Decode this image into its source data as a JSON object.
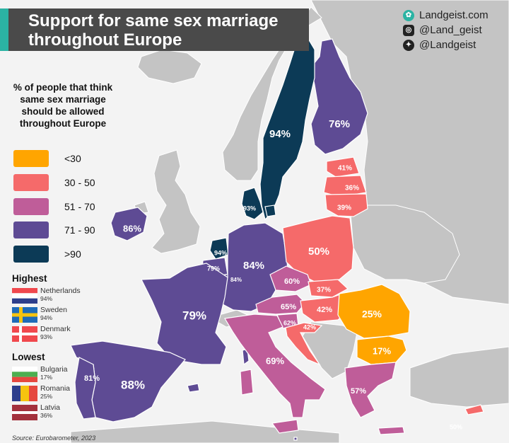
{
  "title": {
    "line1": "Support for same sex marriage",
    "line2": "throughout Europe"
  },
  "branding": [
    {
      "icon": "landgeist-logo-icon",
      "text": "Landgeist.com"
    },
    {
      "icon": "instagram-icon",
      "text": "@Land_geist"
    },
    {
      "icon": "twitter-icon",
      "text": "@Landgeist"
    }
  ],
  "legend": {
    "title": "% of people that think same sex marriage should be allowed throughout Europe",
    "items": [
      {
        "label": "<30",
        "color": "#ffa500"
      },
      {
        "label": "30 - 50",
        "color": "#f56a6a"
      },
      {
        "label": "51 - 70",
        "color": "#bf5d99"
      },
      {
        "label": "71 - 90",
        "color": "#5e4b94"
      },
      {
        "label": ">90",
        "color": "#0c3a56"
      }
    ]
  },
  "highest": {
    "title": "Highest",
    "items": [
      {
        "country": "Netherlands",
        "value": "94%",
        "flag": "netherlands-flag-icon"
      },
      {
        "country": "Sweden",
        "value": "94%",
        "flag": "sweden-flag-icon"
      },
      {
        "country": "Denmark",
        "value": "93%",
        "flag": "denmark-flag-icon"
      }
    ]
  },
  "lowest": {
    "title": "Lowest",
    "items": [
      {
        "country": "Bulgaria",
        "value": "17%",
        "flag": "bulgaria-flag-icon"
      },
      {
        "country": "Romania",
        "value": "25%",
        "flag": "romania-flag-icon"
      },
      {
        "country": "Latvia",
        "value": "36%",
        "flag": "latvia-flag-icon"
      }
    ]
  },
  "source": "Source: Eurobarometer, 2023",
  "colors": {
    "nonEU": "#c4c4c4",
    "sea": "#f3f3f3",
    "border": "#ffffff",
    "titleBg": "#4a4a4a",
    "accent": "#2bb3a3"
  },
  "countries": [
    {
      "id": "sweden",
      "value": "94%",
      "label": true
    },
    {
      "id": "finland",
      "value": "76%",
      "label": true
    },
    {
      "id": "estonia",
      "value": "41%",
      "label": true
    },
    {
      "id": "latvia",
      "value": "36%",
      "label": true
    },
    {
      "id": "lithuania",
      "value": "39%",
      "label": true
    },
    {
      "id": "denmark",
      "value": "93%",
      "label": true
    },
    {
      "id": "ireland",
      "value": "86%",
      "label": true
    },
    {
      "id": "netherlands",
      "value": "94%",
      "label": true
    },
    {
      "id": "belgium",
      "value": "79%",
      "label": true
    },
    {
      "id": "luxembourg",
      "value": "84%",
      "label": true
    },
    {
      "id": "germany",
      "value": "84%",
      "label": true
    },
    {
      "id": "poland",
      "value": "50%",
      "label": true
    },
    {
      "id": "czechia",
      "value": "60%",
      "label": true
    },
    {
      "id": "slovakia",
      "value": "37%",
      "label": true
    },
    {
      "id": "austria",
      "value": "65%",
      "label": true
    },
    {
      "id": "hungary",
      "value": "42%",
      "label": true
    },
    {
      "id": "slovenia",
      "value": "62%",
      "label": true
    },
    {
      "id": "croatia",
      "value": "42%",
      "label": true
    },
    {
      "id": "romania",
      "value": "25%",
      "label": true
    },
    {
      "id": "bulgaria",
      "value": "17%",
      "label": true
    },
    {
      "id": "france",
      "value": "79%",
      "label": true
    },
    {
      "id": "spain",
      "value": "88%",
      "label": true
    },
    {
      "id": "portugal",
      "value": "81%",
      "label": true
    },
    {
      "id": "italy",
      "value": "69%",
      "label": true
    },
    {
      "id": "greece",
      "value": "57%",
      "label": true
    },
    {
      "id": "cyprus",
      "value": "50%",
      "label": true
    },
    {
      "id": "malta",
      "value": "",
      "label": false
    }
  ]
}
